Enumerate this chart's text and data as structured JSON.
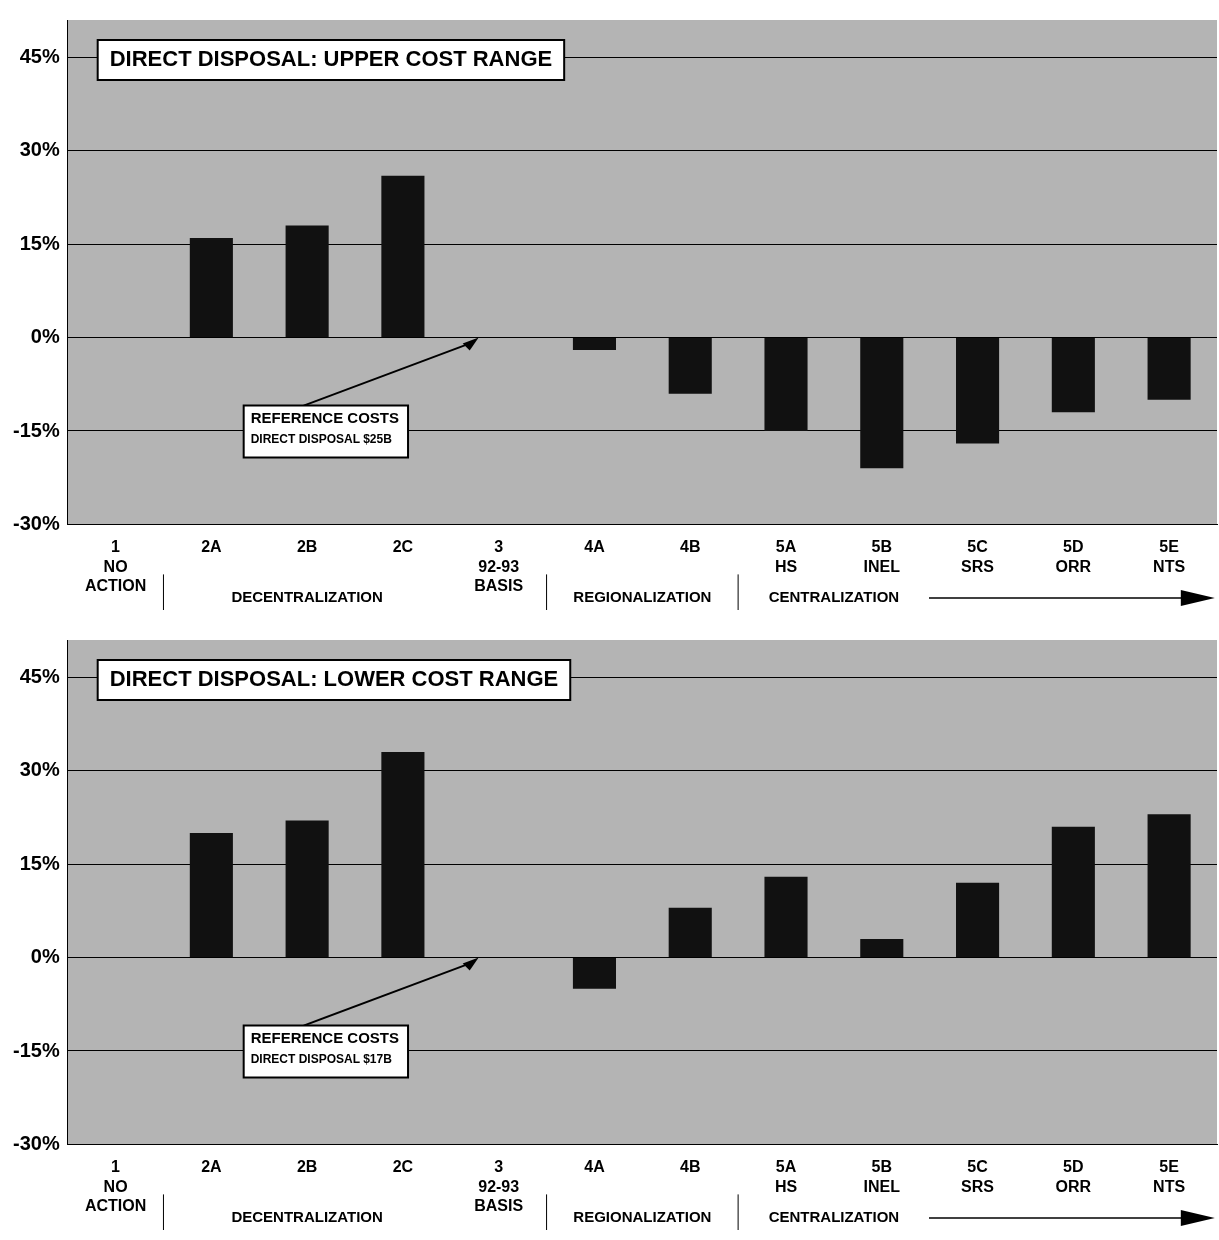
{
  "chart_data": [
    {
      "type": "bar",
      "title": "DIRECT DISPOSAL: UPPER COST RANGE",
      "categories": [
        "1\nNO\nACTION",
        "2A",
        "2B",
        "2C",
        "3\n92-93\nBASIS",
        "4A",
        "4B",
        "5A\nHS",
        "5B\nINEL",
        "5C\nSRS",
        "5D\nORR",
        "5E\nNTS"
      ],
      "values": [
        null,
        16,
        18,
        26,
        null,
        -2,
        -9,
        -15,
        -21,
        -17,
        -12,
        -10
      ],
      "color": "#111111",
      "ylim": [
        -30,
        51
      ],
      "yticks": [
        {
          "value": -30,
          "label": "-30%"
        },
        {
          "value": -15,
          "label": "-15%"
        },
        {
          "value": 0,
          "label": "0%"
        },
        {
          "value": 15,
          "label": "15%"
        },
        {
          "value": 30,
          "label": "30%"
        },
        {
          "value": 45,
          "label": "45%"
        }
      ],
      "grid": "y",
      "legend": false,
      "annotations": [
        "REFERENCE COSTS\nDIRECT DISPOSAL $25B",
        "DECENTRALIZATION",
        "REGIONALIZATION",
        "CENTRALIZATION"
      ]
    },
    {
      "type": "bar",
      "title": "DIRECT DISPOSAL: LOWER COST RANGE",
      "categories": [
        "1\nNO\nACTION",
        "2A",
        "2B",
        "2C",
        "3\n92-93\nBASIS",
        "4A",
        "4B",
        "5A\nHS",
        "5B\nINEL",
        "5C\nSRS",
        "5D\nORR",
        "5E\nNTS"
      ],
      "values": [
        null,
        20,
        22,
        33,
        null,
        -5,
        8,
        13,
        3,
        12,
        21,
        23
      ],
      "color": "#111111",
      "ylim": [
        -30,
        51
      ],
      "yticks": [
        {
          "value": -30,
          "label": "-30%"
        },
        {
          "value": -15,
          "label": "-15%"
        },
        {
          "value": 0,
          "label": "0%"
        },
        {
          "value": 15,
          "label": "15%"
        },
        {
          "value": 30,
          "label": "30%"
        },
        {
          "value": 45,
          "label": "45%"
        }
      ],
      "grid": "y",
      "legend": false,
      "annotations": [
        "REFERENCE COSTS\nDIRECT DISPOSAL $17B",
        "DECENTRALIZATION",
        "REGIONALIZATION",
        "CENTRALIZATION"
      ]
    }
  ]
}
